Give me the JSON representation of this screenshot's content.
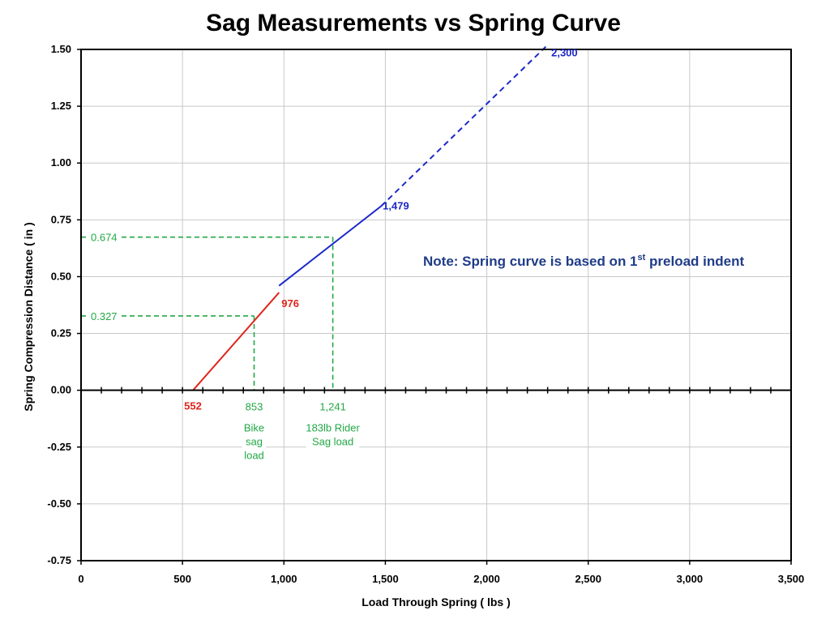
{
  "chart_data": {
    "type": "line",
    "title": "Sag Measurements vs Spring Curve",
    "xlabel": "Load Through Spring  ( lbs )",
    "ylabel": "Spring Compression Distance  ( in )",
    "xlim": [
      0,
      3500
    ],
    "ylim": [
      -0.75,
      1.5
    ],
    "x_ticks": [
      "0",
      "500",
      "1,000",
      "1,500",
      "2,000",
      "2,500",
      "3,000",
      "3,500"
    ],
    "x_tick_values": [
      0,
      500,
      1000,
      1500,
      2000,
      2500,
      3000,
      3500
    ],
    "y_ticks": [
      "1.50",
      "1.25",
      "1.00",
      "0.75",
      "0.50",
      "0.25",
      "0.00",
      "-0.25",
      "-0.50",
      "-0.75"
    ],
    "y_tick_values": [
      1.5,
      1.25,
      1.0,
      0.75,
      0.5,
      0.25,
      0.0,
      -0.25,
      -0.5,
      -0.75
    ],
    "grid": true,
    "colors": {
      "red": "#e0241c",
      "blue": "#1c28c8",
      "green": "#22a845",
      "note": "#1f3c88"
    },
    "series": [
      {
        "color": "red",
        "style": "solid",
        "x": [
          552,
          976
        ],
        "y": [
          0.0,
          0.43
        ]
      },
      {
        "color": "blue",
        "style": "solid",
        "x": [
          976,
          1479
        ],
        "y": [
          0.46,
          0.81
        ]
      },
      {
        "color": "blue",
        "style": "dashed",
        "x": [
          1479,
          2300
        ],
        "y": [
          0.81,
          1.52
        ]
      }
    ],
    "point_labels": [
      {
        "text": "552",
        "x": 552,
        "y": 0.0,
        "color": "red"
      },
      {
        "text": "976",
        "x": 976,
        "y": 0.43,
        "color": "red"
      },
      {
        "text": "1,479",
        "x": 1479,
        "y": 0.81,
        "color": "blue"
      },
      {
        "text": "2,300",
        "x": 2300,
        "y": 1.52,
        "color": "blue"
      }
    ],
    "sag_markers": [
      {
        "x": 853,
        "y": 0.327,
        "x_text": "853",
        "y_text": "0.327",
        "caption": [
          "Bike",
          "sag",
          "load"
        ]
      },
      {
        "x": 1241,
        "y": 0.674,
        "x_text": "1,241",
        "y_text": "0.674",
        "caption": [
          "183lb Rider",
          "Sag load"
        ]
      }
    ],
    "note": {
      "prefix": "Note:  Spring curve is based on 1",
      "sup": "st",
      "suffix": " preload indent"
    }
  }
}
